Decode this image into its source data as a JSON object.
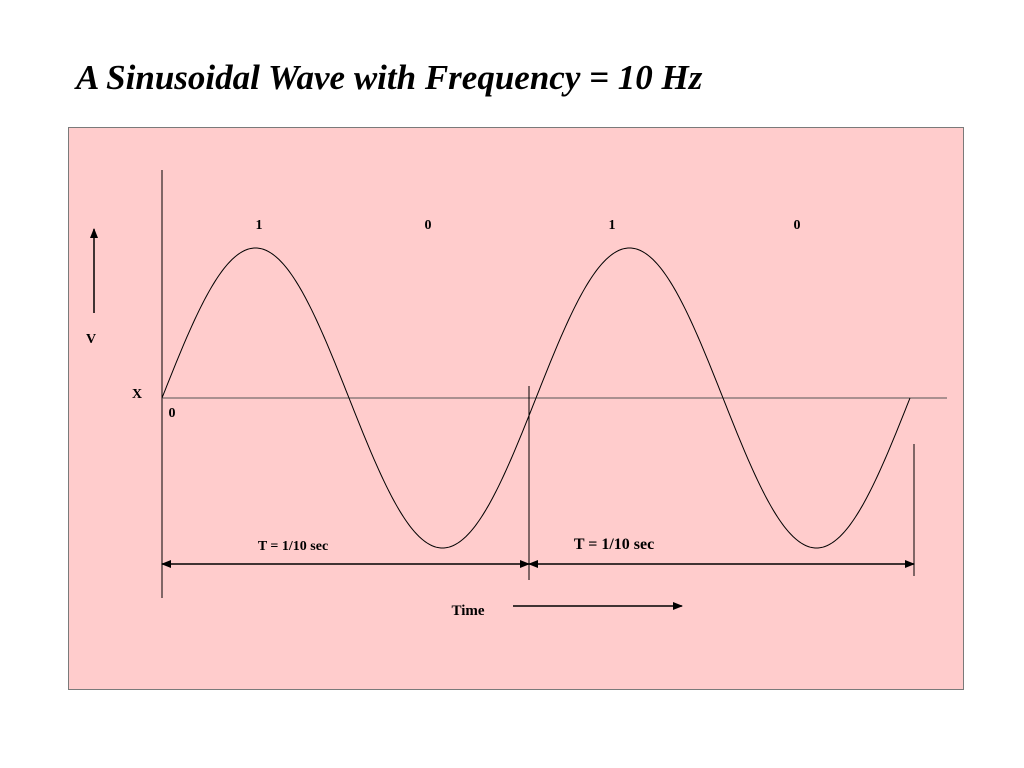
{
  "title": "A Sinusoidal Wave with Frequency = 10 Hz",
  "colors": {
    "panel_background": "#ffcccc",
    "panel_border": "#7a7a7a",
    "line": "#000000",
    "axis": "#555555"
  },
  "diagram": {
    "bit_labels": [
      "1",
      "0",
      "1",
      "0"
    ],
    "v_label": "V",
    "x_label": "X",
    "origin_label": "0",
    "period_labels": [
      "T = 1/10 sec",
      "T = 1/10 sec"
    ],
    "time_label": "Time",
    "cycles": 2
  }
}
